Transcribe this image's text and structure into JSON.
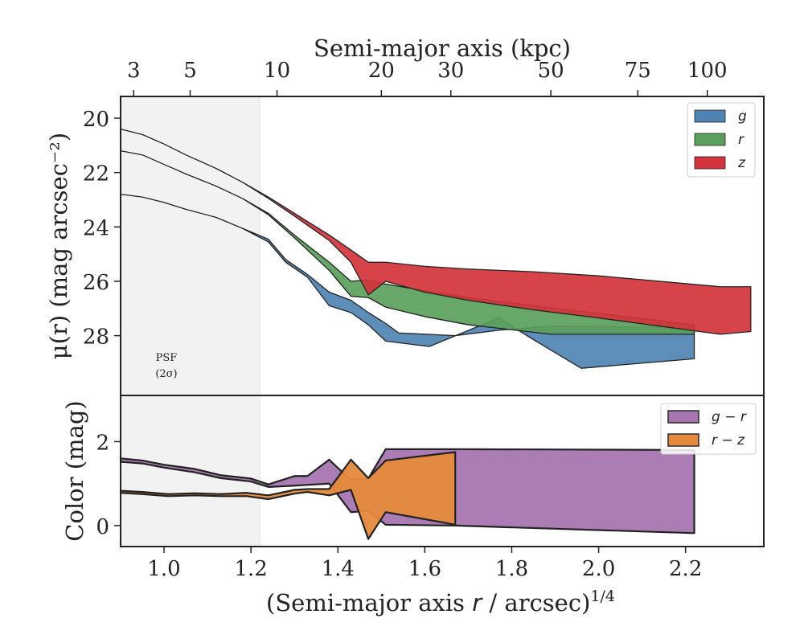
{
  "chart_data": [
    {
      "type": "area",
      "panel": "top",
      "top_axis_label": "Semi-major axis (kpc)",
      "top_ticks_kpc": [
        "3",
        "5",
        "10",
        "20",
        "30",
        "50",
        "75",
        "100"
      ],
      "top_ticks_x": [
        0.93,
        1.06,
        1.26,
        1.5,
        1.66,
        1.89,
        2.09,
        2.25
      ],
      "ylabel": "μ(r) (mag arcsec⁻²)",
      "xlim": [
        0.9,
        2.38
      ],
      "ylim": [
        30.2,
        19.2
      ],
      "yticks": [
        20,
        22,
        24,
        26,
        28
      ],
      "psf_shade": {
        "x0": 0.9,
        "x1": 1.22,
        "label_line1": "PSF",
        "label_line2": "(2σ)"
      },
      "legend": {
        "placement": "upper-right",
        "entries": [
          "g",
          "r",
          "z"
        ]
      },
      "series": [
        {
          "name": "g",
          "color": "#4f83b3",
          "upper": [
            [
              0.9,
              22.8
            ],
            [
              0.95,
              22.9
            ],
            [
              1.0,
              23.1
            ],
            [
              1.05,
              23.35
            ],
            [
              1.12,
              23.65
            ],
            [
              1.18,
              24.05
            ],
            [
              1.24,
              24.45
            ],
            [
              1.28,
              25.2
            ],
            [
              1.33,
              25.75
            ],
            [
              1.38,
              26.4
            ],
            [
              1.43,
              26.7
            ],
            [
              1.47,
              27.15
            ],
            [
              1.51,
              27.55
            ],
            [
              1.54,
              27.9
            ],
            [
              1.67,
              28.0
            ],
            [
              1.77,
              27.8
            ],
            [
              1.89,
              27.65
            ],
            [
              2.22,
              27.7
            ]
          ],
          "lower": [
            [
              0.9,
              22.8
            ],
            [
              0.95,
              22.9
            ],
            [
              1.0,
              23.1
            ],
            [
              1.05,
              23.35
            ],
            [
              1.12,
              23.65
            ],
            [
              1.18,
              24.05
            ],
            [
              1.24,
              24.55
            ],
            [
              1.28,
              25.3
            ],
            [
              1.33,
              25.85
            ],
            [
              1.38,
              26.9
            ],
            [
              1.43,
              27.15
            ],
            [
              1.47,
              27.6
            ],
            [
              1.51,
              28.2
            ],
            [
              1.61,
              28.4
            ],
            [
              1.77,
              27.35
            ],
            [
              1.84,
              28.05
            ],
            [
              1.96,
              29.2
            ],
            [
              2.22,
              28.85
            ]
          ]
        },
        {
          "name": "r",
          "color": "#5aa05a",
          "upper": [
            [
              0.9,
              21.2
            ],
            [
              0.95,
              21.35
            ],
            [
              1.0,
              21.7
            ],
            [
              1.05,
              22.05
            ],
            [
              1.12,
              22.5
            ],
            [
              1.18,
              22.95
            ],
            [
              1.24,
              23.5
            ],
            [
              1.3,
              24.3
            ],
            [
              1.38,
              25.3
            ],
            [
              1.43,
              26.0
            ],
            [
              1.47,
              25.95
            ],
            [
              1.51,
              26.1
            ],
            [
              1.6,
              26.35
            ],
            [
              1.7,
              26.6
            ],
            [
              1.85,
              26.9
            ],
            [
              2.22,
              27.6
            ]
          ],
          "lower": [
            [
              0.9,
              21.2
            ],
            [
              0.95,
              21.35
            ],
            [
              1.0,
              21.7
            ],
            [
              1.05,
              22.05
            ],
            [
              1.12,
              22.5
            ],
            [
              1.18,
              22.95
            ],
            [
              1.24,
              23.55
            ],
            [
              1.3,
              24.4
            ],
            [
              1.38,
              25.6
            ],
            [
              1.43,
              26.55
            ],
            [
              1.47,
              26.6
            ],
            [
              1.51,
              26.95
            ],
            [
              1.6,
              27.3
            ],
            [
              1.7,
              27.6
            ],
            [
              1.89,
              27.95
            ],
            [
              2.22,
              27.95
            ]
          ]
        },
        {
          "name": "z",
          "color": "#d3343b",
          "upper": [
            [
              0.9,
              20.4
            ],
            [
              0.95,
              20.6
            ],
            [
              1.0,
              20.95
            ],
            [
              1.05,
              21.35
            ],
            [
              1.12,
              21.85
            ],
            [
              1.18,
              22.35
            ],
            [
              1.24,
              22.9
            ],
            [
              1.3,
              23.5
            ],
            [
              1.38,
              24.3
            ],
            [
              1.43,
              24.85
            ],
            [
              1.47,
              25.3
            ],
            [
              1.51,
              25.3
            ],
            [
              1.6,
              25.45
            ],
            [
              1.7,
              25.55
            ],
            [
              1.85,
              25.65
            ],
            [
              2.0,
              25.8
            ],
            [
              2.28,
              26.2
            ],
            [
              2.35,
              26.2
            ]
          ],
          "lower": [
            [
              0.9,
              20.4
            ],
            [
              0.95,
              20.6
            ],
            [
              1.0,
              20.95
            ],
            [
              1.05,
              21.35
            ],
            [
              1.12,
              21.85
            ],
            [
              1.18,
              22.35
            ],
            [
              1.24,
              22.95
            ],
            [
              1.3,
              23.6
            ],
            [
              1.38,
              24.5
            ],
            [
              1.43,
              25.3
            ],
            [
              1.47,
              26.5
            ],
            [
              1.51,
              26.0
            ],
            [
              1.6,
              26.4
            ],
            [
              1.7,
              26.7
            ],
            [
              1.85,
              27.05
            ],
            [
              2.0,
              27.35
            ],
            [
              2.28,
              27.95
            ],
            [
              2.35,
              27.85
            ]
          ]
        }
      ]
    },
    {
      "type": "area",
      "panel": "bottom",
      "ylabel": "Color (mag)",
      "xlabel_main": "(Semi-major axis ",
      "xlabel_var": "r",
      "xlabel_rest": " / arcsec)",
      "xlabel_sup": "1/4",
      "xlim": [
        0.9,
        2.38
      ],
      "ylim": [
        -0.5,
        3.1
      ],
      "yticks": [
        0,
        2
      ],
      "xticks": [
        "1.0",
        "1.2",
        "1.4",
        "1.6",
        "1.8",
        "2.0",
        "2.2"
      ],
      "xtick_values": [
        1.0,
        1.2,
        1.4,
        1.6,
        1.8,
        2.0,
        2.2
      ],
      "legend": {
        "placement": "upper-right",
        "entries": [
          "g − r",
          "r − z"
        ]
      },
      "series": [
        {
          "name": "g − r",
          "color": "#a776b0",
          "upper": [
            [
              0.9,
              1.6
            ],
            [
              0.95,
              1.55
            ],
            [
              1.0,
              1.45
            ],
            [
              1.07,
              1.35
            ],
            [
              1.13,
              1.2
            ],
            [
              1.2,
              1.12
            ],
            [
              1.24,
              0.98
            ],
            [
              1.3,
              1.18
            ],
            [
              1.33,
              1.18
            ],
            [
              1.38,
              1.57
            ],
            [
              1.43,
              1.08
            ],
            [
              1.47,
              1.12
            ],
            [
              1.51,
              1.82
            ],
            [
              1.67,
              1.82
            ],
            [
              2.22,
              1.8
            ]
          ],
          "lower": [
            [
              0.9,
              1.52
            ],
            [
              0.95,
              1.48
            ],
            [
              1.0,
              1.38
            ],
            [
              1.07,
              1.27
            ],
            [
              1.13,
              1.13
            ],
            [
              1.2,
              1.05
            ],
            [
              1.24,
              0.92
            ],
            [
              1.3,
              0.95
            ],
            [
              1.38,
              1.0
            ],
            [
              1.43,
              0.32
            ],
            [
              1.47,
              0.35
            ],
            [
              1.51,
              0.02
            ],
            [
              1.67,
              0.0
            ],
            [
              2.22,
              -0.18
            ]
          ]
        },
        {
          "name": "r − z",
          "color": "#e58a3c",
          "upper": [
            [
              0.9,
              0.83
            ],
            [
              0.95,
              0.8
            ],
            [
              1.01,
              0.75
            ],
            [
              1.07,
              0.77
            ],
            [
              1.13,
              0.75
            ],
            [
              1.19,
              0.78
            ],
            [
              1.24,
              0.72
            ],
            [
              1.3,
              0.85
            ],
            [
              1.33,
              0.87
            ],
            [
              1.38,
              0.87
            ],
            [
              1.43,
              1.57
            ],
            [
              1.47,
              1.13
            ],
            [
              1.51,
              1.55
            ],
            [
              1.67,
              1.75
            ]
          ],
          "lower": [
            [
              0.9,
              0.78
            ],
            [
              0.95,
              0.75
            ],
            [
              1.01,
              0.7
            ],
            [
              1.07,
              0.72
            ],
            [
              1.13,
              0.7
            ],
            [
              1.19,
              0.7
            ],
            [
              1.24,
              0.63
            ],
            [
              1.3,
              0.76
            ],
            [
              1.33,
              0.8
            ],
            [
              1.38,
              0.72
            ],
            [
              1.43,
              0.85
            ],
            [
              1.47,
              -0.32
            ],
            [
              1.51,
              0.32
            ],
            [
              1.67,
              0.02
            ]
          ]
        }
      ]
    }
  ]
}
